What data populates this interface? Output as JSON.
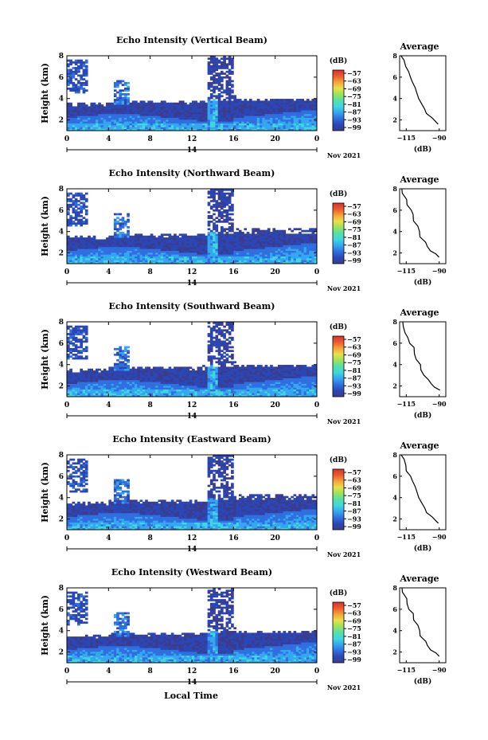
{
  "figure": {
    "xlabel": "Local Time"
  },
  "panels": [
    {
      "title": "Echo Intensity (Vertical Beam)",
      "profile_title": "Average"
    },
    {
      "title": "Echo Intensity (Northward Beam)",
      "profile_title": "Average"
    },
    {
      "title": "Echo Intensity (Southward Beam)",
      "profile_title": "Average"
    },
    {
      "title": "Echo Intensity (Eastward Beam)",
      "profile_title": "Average"
    },
    {
      "title": "Echo Intensity (Westward Beam)",
      "profile_title": "Average"
    }
  ],
  "chart_data": {
    "type": "heatmap",
    "ylabel": "Height (km)",
    "xlabel": "Local Time",
    "x_ticks": [
      "0",
      "4",
      "8",
      "12",
      "16",
      "20",
      "0"
    ],
    "y_ticks": [
      "2",
      "4",
      "6",
      "8"
    ],
    "xlim": [
      0,
      24
    ],
    "ylim": [
      1,
      8
    ],
    "date_label": "14",
    "month_label": "Nov 2021",
    "colorbar": {
      "unit": "(dB)",
      "ticks": [
        "-57",
        "-63",
        "-69",
        "-75",
        "-81",
        "-87",
        "-93",
        "-99"
      ],
      "range": [
        -100,
        -55
      ],
      "colors": [
        "#3a3d8f",
        "#2b47b5",
        "#2f6fe0",
        "#35a6f0",
        "#3fd7e0",
        "#55e0a8",
        "#9be35a",
        "#e8e048",
        "#f6a33a",
        "#ee5a2c",
        "#d8322b"
      ]
    },
    "profile": {
      "xlabel": "(dB)",
      "x_ticks": [
        "-115",
        "-90"
      ],
      "xlim": [
        -120,
        -85
      ],
      "y_ticks": [
        "2",
        "4",
        "6",
        "8"
      ],
      "ylim": [
        1,
        8
      ],
      "points": [
        [
          -118,
          8.0
        ],
        [
          -117,
          7.6
        ],
        [
          -115,
          7.0
        ],
        [
          -114,
          6.5
        ],
        [
          -112,
          6.0
        ],
        [
          -110,
          5.6
        ],
        [
          -109,
          5.0
        ],
        [
          -107,
          4.5
        ],
        [
          -105,
          4.0
        ],
        [
          -104,
          3.5
        ],
        [
          -101,
          3.0
        ],
        [
          -99,
          2.6
        ],
        [
          -96,
          2.2
        ],
        [
          -93,
          1.9
        ],
        [
          -90,
          1.6
        ]
      ]
    }
  }
}
